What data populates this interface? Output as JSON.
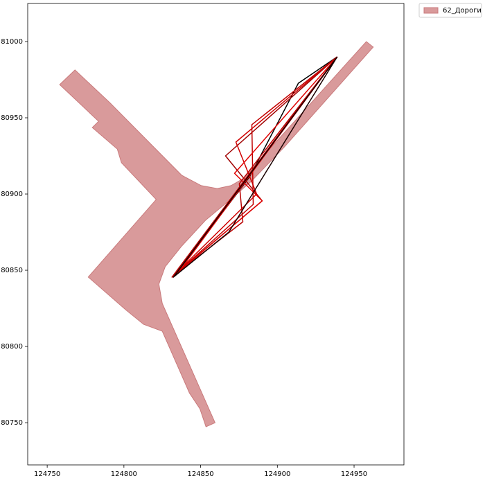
{
  "chart_data": {
    "type": "polygon",
    "xlim": [
      124737.3,
      124982.5
    ],
    "ylim": [
      80722.3,
      81025.0
    ],
    "xticks": [
      124750,
      124800,
      124850,
      124900,
      124950
    ],
    "yticks": [
      80750,
      80800,
      80850,
      80900,
      80950,
      81000
    ],
    "legend": "outside upper right",
    "polygons": [
      {
        "name": "62_Дороги",
        "color": "#d99a9b",
        "edgecolor": "#c97a7c",
        "x": [
          124758.1,
          124768.1,
          124790.7,
          124837.7,
          124850.4,
          124860.8,
          124869.8,
          124877.5,
          124958.0,
          124962.5,
          124904.6,
          124882.9,
          124868.4,
          124853.1,
          124837.7,
          124826.9,
          124822.8,
          124825.0,
          124859.4,
          124853.5,
          124849.5,
          124842.7,
          124825.0,
          124812.8,
          124801.1,
          124776.7,
          124821.0,
          124798.4,
          124795.7,
          124779.4,
          124783.5
        ],
        "y": [
          80971.8,
          80981.4,
          80960.0,
          80912.3,
          80905.5,
          80903.6,
          80905.5,
          80910.0,
          81000.0,
          80996.4,
          80930.9,
          80908.2,
          80895.5,
          80882.7,
          80865.9,
          80852.3,
          80840.9,
          80828.2,
          80750.0,
          80747.3,
          80759.1,
          80769.5,
          80810.0,
          80814.5,
          80824.1,
          80845.5,
          80896.4,
          80920.5,
          80929.5,
          80943.6,
          80947.7
        ]
      }
    ],
    "lines": [
      {
        "color": "#000000",
        "x": [
          124939.0,
          124913.7,
          124882.0,
          124832.3,
          124939.0
        ],
        "y": [
          80990.0,
          80972.7,
          80911.4,
          80845.5,
          80990.0
        ]
      },
      {
        "color": "#a00000",
        "x": [
          124939.0,
          124866.2,
          124890.1,
          124831.4,
          124939.0
        ],
        "y": [
          80990.0,
          80925.0,
          80895.5,
          80845.5,
          80990.0
        ]
      },
      {
        "color": "#d00000",
        "x": [
          124939.0,
          124873.0,
          124886.5,
          124832.3,
          124939.0
        ],
        "y": [
          80990.0,
          80934.1,
          80900.0,
          80846.4,
          80990.0
        ]
      },
      {
        "color": "#c00000",
        "x": [
          124939.0,
          124883.4,
          124884.3,
          124831.4,
          124939.0
        ],
        "y": [
          80990.0,
          80945.5,
          80893.2,
          80845.5,
          80990.0
        ]
      },
      {
        "color": "#e00000",
        "x": [
          124939.0,
          124872.1,
          124890.1,
          124835.9,
          124939.0
        ],
        "y": [
          80990.0,
          80913.6,
          80895.5,
          80849.1,
          80990.0
        ]
      },
      {
        "color": "#b80000",
        "x": [
          124939.0,
          124875.2,
          124877.5,
          124831.4,
          124939.0
        ],
        "y": [
          80990.0,
          80906.8,
          80881.8,
          80845.5,
          80990.0
        ]
      },
      {
        "color": "#1a0000",
        "x": [
          124939.0,
          124832.3,
          124868.4,
          124939.0
        ],
        "y": [
          80990.0,
          80845.5,
          80875.0,
          80990.0
        ]
      }
    ]
  }
}
